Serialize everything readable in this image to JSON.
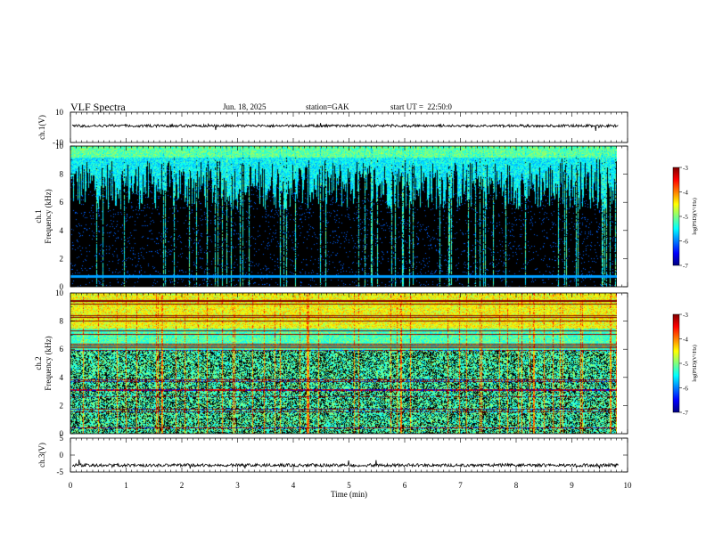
{
  "header": {
    "title": "VLF Spectra",
    "date": "Jun. 18, 2025",
    "station": "station=GAK",
    "start_ut": "start UT =  22:50:0"
  },
  "chart_data": [
    {
      "type": "line",
      "panel": "ch1-waveform",
      "ylabel": "ch.1(V)",
      "ylim": [
        -10,
        10
      ],
      "yticks": [
        "10",
        "-10"
      ],
      "x": {
        "range": [
          0,
          10
        ],
        "unit": "min"
      },
      "series": [
        {
          "description_level": 1,
          "mean_value": 1,
          "noise_amplitude": 0.6
        }
      ]
    },
    {
      "type": "heatmap",
      "panel": "ch1-spectrogram",
      "ylabel_line1": "ch.1",
      "ylabel_line2": "Frequency (kHz)",
      "ylim": [
        0,
        10
      ],
      "yticks": [
        "0",
        "2",
        "4",
        "6",
        "8",
        "10"
      ],
      "x": {
        "range": [
          0,
          9.83
        ],
        "unit": "min"
      },
      "colorbar": {
        "label": "log(PSD)(V²/Hz)",
        "range": [
          -7,
          -3
        ],
        "ticks": [
          "-3",
          "-4",
          "-5",
          "-6",
          "-7"
        ]
      }
    },
    {
      "type": "heatmap",
      "panel": "ch2-spectrogram",
      "ylabel_line1": "ch.2",
      "ylabel_line2": "Frequency (kHz)",
      "ylim": [
        0,
        10
      ],
      "yticks": [
        "0",
        "2",
        "4",
        "6",
        "8",
        "10"
      ],
      "x": {
        "range": [
          0,
          9.83
        ],
        "unit": "min"
      },
      "colorbar": {
        "label": "log(PSD)(V²/Hz)",
        "range": [
          -7,
          -3
        ],
        "ticks": [
          "-3",
          "-4",
          "-5",
          "-6",
          "-7"
        ]
      }
    },
    {
      "type": "line",
      "panel": "ch3-waveform",
      "ylabel": "ch.3(V)",
      "ylim": [
        -5,
        5
      ],
      "yticks": [
        "5",
        "0",
        "-5"
      ],
      "xlabel": "Time (min)",
      "xlim": [
        0,
        10
      ],
      "xticks": [
        "0",
        "1",
        "2",
        "3",
        "4",
        "5",
        "6",
        "7",
        "8",
        "9",
        "10"
      ],
      "series": [
        {
          "mean_value": -3,
          "noise_amplitude": 0.3
        }
      ]
    }
  ],
  "colors": {
    "jet": [
      "#00007f",
      "#0000ff",
      "#007fff",
      "#00ffff",
      "#7fff7f",
      "#ffff00",
      "#ff7f00",
      "#ff0000",
      "#7f0000"
    ]
  }
}
